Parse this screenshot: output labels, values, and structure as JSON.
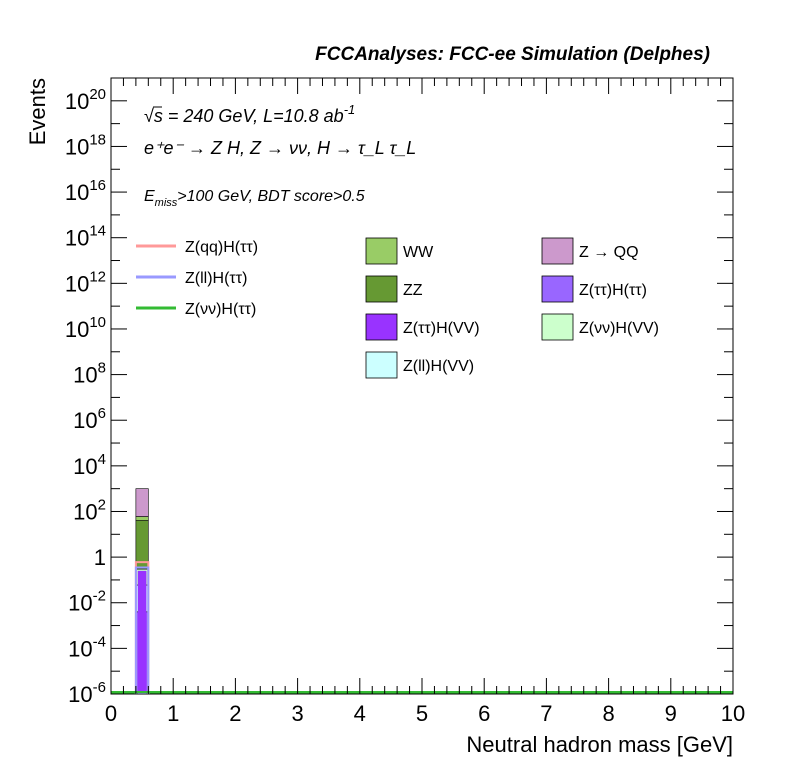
{
  "header": "FCCAnalyses: FCC-ee Simulation (Delphes)",
  "info": {
    "line1": "√s = 240 GeV, L=10.8 ab",
    "line1_sup": "-1",
    "line2": "e⁺e⁻ → Z H, Z → νν, H → τ_L τ_L",
    "line3_prefix": "E",
    "line3_sub": "miss",
    "line3_suffix": ">100 GeV, BDT score>0.5"
  },
  "chart_data": {
    "type": "bar",
    "xlabel": "Neutral hadron mass [GeV]",
    "ylabel": "Events",
    "xlim": [
      0,
      10
    ],
    "ylim": [
      1e-06,
      1e+21
    ],
    "yscale": "log",
    "bin_width": 0.2,
    "x_ticks": [
      0,
      1,
      2,
      3,
      4,
      5,
      6,
      7,
      8,
      9,
      10
    ],
    "y_ticks": [
      {
        "value": 1e-06,
        "base": "10",
        "exp": "-6"
      },
      {
        "value": 0.0001,
        "base": "10",
        "exp": "-4"
      },
      {
        "value": 0.01,
        "base": "10",
        "exp": "-2"
      },
      {
        "value": 1,
        "base": "1",
        "exp": ""
      },
      {
        "value": 100.0,
        "base": "10",
        "exp": "2"
      },
      {
        "value": 10000.0,
        "base": "10",
        "exp": "4"
      },
      {
        "value": 1000000.0,
        "base": "10",
        "exp": "6"
      },
      {
        "value": 100000000.0,
        "base": "10",
        "exp": "8"
      },
      {
        "value": 10000000000.0,
        "base": "10",
        "exp": "10"
      },
      {
        "value": 1000000000000.0,
        "base": "10",
        "exp": "12"
      },
      {
        "value": 100000000000000.0,
        "base": "10",
        "exp": "14"
      },
      {
        "value": 1e+16,
        "base": "10",
        "exp": "16"
      },
      {
        "value": 1e+18,
        "base": "10",
        "exp": "18"
      },
      {
        "value": 1e+20,
        "base": "10",
        "exp": "20"
      }
    ],
    "stack_bin": {
      "x_low": 0.4,
      "x_high": 0.6,
      "segments": [
        {
          "name": "Z(ττ)H(ττ)",
          "low": 1e-06,
          "high": 0.004,
          "color": "#9966ff"
        },
        {
          "name": "Z(ll)H(VV)",
          "low": 0.004,
          "high": 0.06,
          "color": "#ccffff"
        },
        {
          "name": "Z(νν)H(VV)",
          "low": 0.06,
          "high": 0.3,
          "color": "#ccffcc"
        },
        {
          "name": "ZZ",
          "low": 0.3,
          "high": 40,
          "color": "#669933"
        },
        {
          "name": "WW",
          "low": 40,
          "high": 60,
          "color": "#99cc66"
        },
        {
          "name": "Z → QQ",
          "low": 60,
          "high": 1000,
          "color": "#cc99cc"
        }
      ],
      "inner": {
        "low": 1e-06,
        "high": 0.25,
        "color": "#9933ff",
        "x_low": 0.43,
        "x_high": 0.57
      }
    },
    "signals": [
      {
        "name": "Z(qq)H(ττ)",
        "color": "#ff9999",
        "y": 0.6
      },
      {
        "name": "Z(ll)H(ττ)",
        "color": "#9999ff",
        "y": 0.35
      },
      {
        "name": "Z(νν)H(ττ)",
        "color": "#33bb33",
        "y": 1.2e-06
      }
    ],
    "legend": {
      "lines": [
        {
          "label": "Z(qq)H(ττ)",
          "color": "#ff9999"
        },
        {
          "label": "Z(ll)H(ττ)",
          "color": "#9999ff"
        },
        {
          "label": "Z(νν)H(ττ)",
          "color": "#33bb33"
        }
      ],
      "boxes": [
        {
          "label": "WW",
          "color": "#99cc66"
        },
        {
          "label": "Z → QQ",
          "color": "#cc99cc"
        },
        {
          "label": "ZZ",
          "color": "#669933"
        },
        {
          "label": "Z(ττ)H(ττ)",
          "color": "#9966ff"
        },
        {
          "label": "Z(ττ)H(VV)",
          "color": "#9933ff"
        },
        {
          "label": "Z(νν)H(VV)",
          "color": "#ccffcc"
        },
        {
          "label": "Z(ll)H(VV)",
          "color": "#ccffff"
        }
      ]
    }
  }
}
